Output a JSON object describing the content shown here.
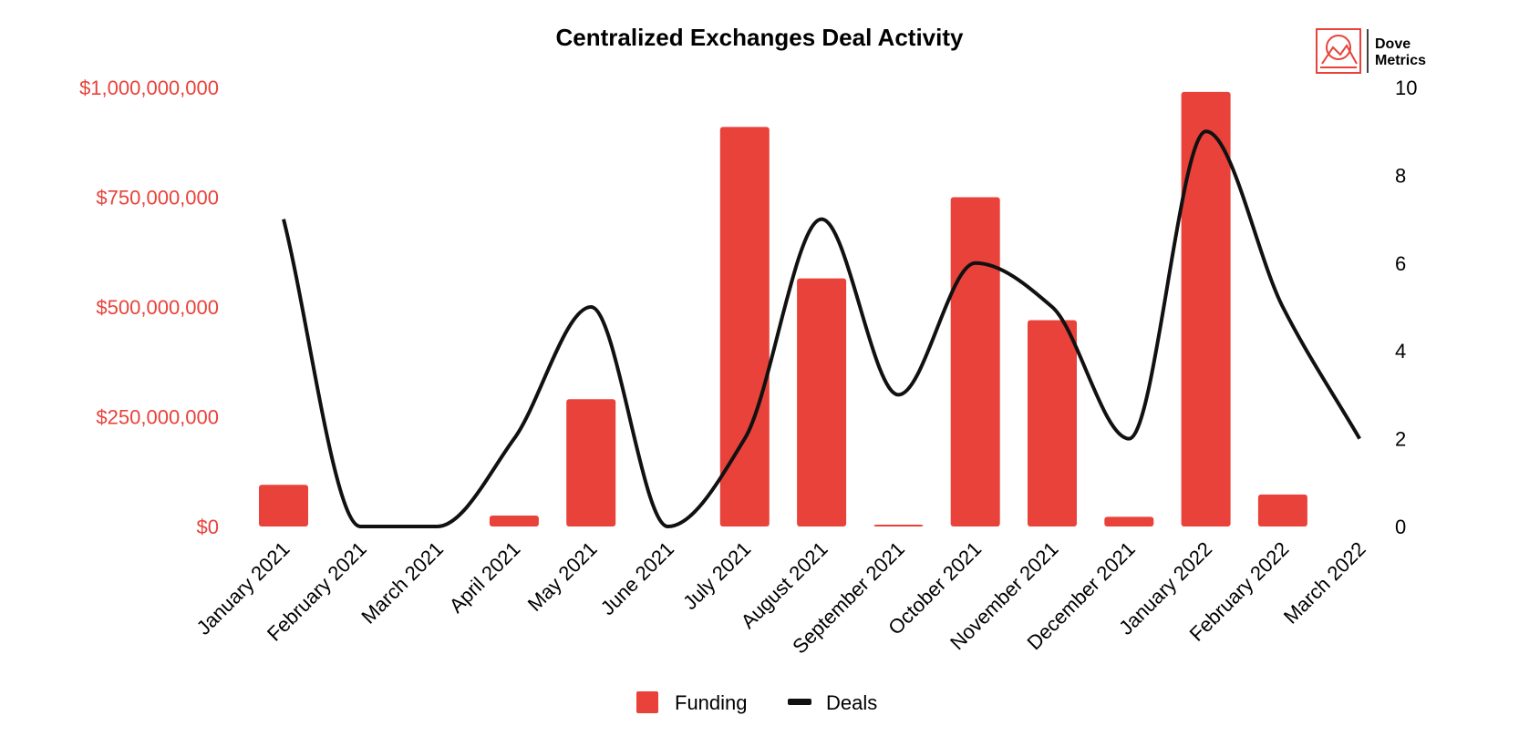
{
  "chart_data": {
    "type": "bar",
    "title": "Centralized Exchanges Deal Activity",
    "categories": [
      "January 2021",
      "February 2021",
      "March 2021",
      "April 2021",
      "May 2021",
      "June 2021",
      "July 2021",
      "August 2021",
      "September 2021",
      "October 2021",
      "November 2021",
      "December 2021",
      "January 2022",
      "February 2022",
      "March 2022"
    ],
    "series": [
      {
        "name": "Funding",
        "type": "bar",
        "axis": "left",
        "color": "#e8423a",
        "values": [
          95000000,
          0,
          0,
          25000000,
          290000000,
          0,
          910000000,
          565000000,
          4000000,
          750000000,
          470000000,
          22000000,
          990000000,
          73000000,
          0
        ]
      },
      {
        "name": "Deals",
        "type": "line",
        "axis": "right",
        "color": "#111111",
        "values": [
          7,
          0,
          0,
          2,
          5,
          0,
          2,
          7,
          3,
          6,
          5,
          2,
          9,
          5,
          2
        ]
      }
    ],
    "y_left": {
      "ticks": [
        0,
        250000000,
        500000000,
        750000000,
        1000000000
      ],
      "tick_labels": [
        "$0",
        "$250,000,000",
        "$500,000,000",
        "$750,000,000",
        "$1,000,000,000"
      ],
      "ylim": [
        0,
        1000000000
      ],
      "color": "#e8423a"
    },
    "y_right": {
      "ticks": [
        0,
        2,
        4,
        6,
        8,
        10
      ],
      "tick_labels": [
        "0",
        "2",
        "4",
        "6",
        "8",
        "10"
      ],
      "ylim": [
        0,
        10
      ]
    },
    "grid": false,
    "legend": {
      "position": "bottom",
      "entries": [
        "Funding",
        "Deals"
      ]
    }
  },
  "logo": {
    "line1": "Dove",
    "line2": "Metrics",
    "color": "#e8423a"
  }
}
